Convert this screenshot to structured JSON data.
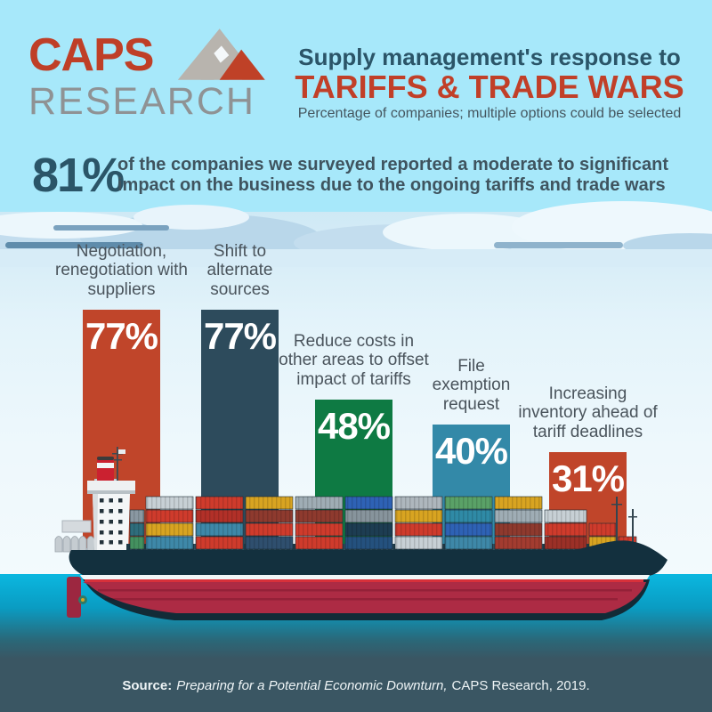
{
  "header": {
    "logo": {
      "word1": "CAPS",
      "word2": "RESEARCH",
      "icon": "mountain-peaks"
    },
    "title_line1": "Supply management's response to",
    "title_line2": "TARIFFS & TRADE WARS",
    "subtitle": "Percentage of companies; multiple options could be selected"
  },
  "highlight": {
    "stat": "81%",
    "text": "of the companies we surveyed reported a moderate to significant\nimpact on the business due to the ongoing tariffs and trade wars"
  },
  "chart_data": {
    "type": "bar",
    "title": "Supply management's response to TARIFFS & TRADE WARS",
    "subtitle": "Percentage of companies; multiple options could be selected",
    "unit": "%",
    "ylim": [
      0,
      100
    ],
    "grid": false,
    "legend": false,
    "categories": [
      "Negotiation, renegotiation with suppliers",
      "Shift to alternate sources",
      "Reduce costs in other areas to offset impact of tariffs",
      "File exemption request",
      "Increasing inventory ahead of tariff deadlines"
    ],
    "values": [
      77,
      77,
      48,
      40,
      31
    ],
    "bars": [
      {
        "label": "Negotiation,\nrenegotiation with\nsuppliers",
        "value": 77,
        "display": "77%",
        "color": "#c0452a"
      },
      {
        "label": "Shift to\nalternate\nsources",
        "value": 77,
        "display": "77%",
        "color": "#2d4b5c"
      },
      {
        "label": "Reduce costs in\nother areas to offset\nimpact of tariffs",
        "value": 48,
        "display": "48%",
        "color": "#0e7a43"
      },
      {
        "label": "File\nexemption\nrequest",
        "value": 40,
        "display": "40%",
        "color": "#3389a8"
      },
      {
        "label": "Increasing\ninventory ahead of\ntariff deadlines",
        "value": 31,
        "display": "31%",
        "color": "#c0452a"
      }
    ]
  },
  "footer": {
    "source_label": "Source:",
    "source_title": "Preparing for a Potential Economic Downturn,",
    "source_suffix": "CAPS Research, 2019."
  },
  "colors": {
    "sky_top": "#a7e8fa",
    "accent_red": "#c13f28",
    "title_navy": "#2b5568",
    "bar_orange": "#c0452a",
    "bar_dark_teal": "#2d4b5c",
    "bar_green": "#0e7a43",
    "bar_steel_blue": "#3389a8",
    "water_top": "#0bb7e0",
    "footer_band": "#3a5663",
    "hull_navy": "#13303e",
    "hull_red": "#ad2b44"
  }
}
